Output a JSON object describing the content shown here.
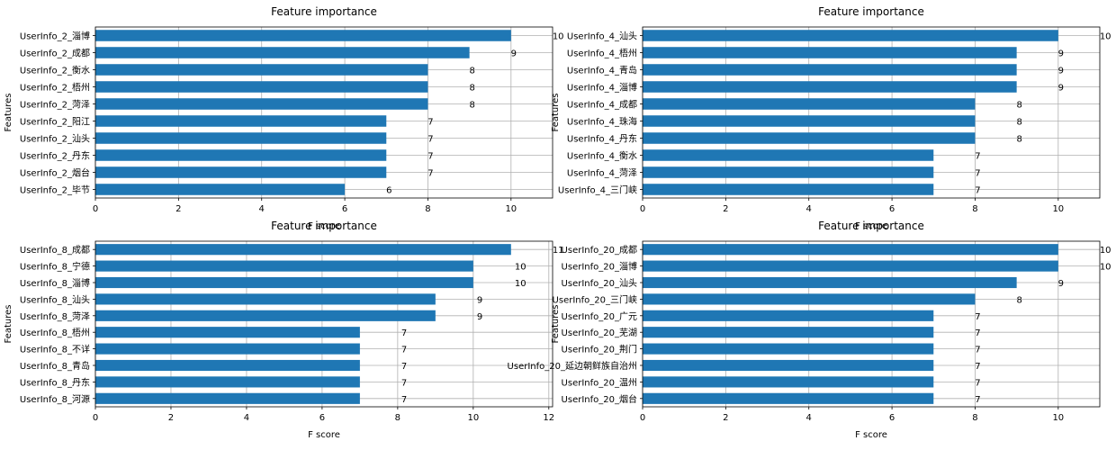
{
  "chart_data": [
    {
      "type": "bar",
      "orientation": "horizontal",
      "title": "Feature importance",
      "xlabel": "F score",
      "ylabel": "Features",
      "xlim": [
        0,
        11
      ],
      "xticks": [
        0,
        2,
        4,
        6,
        8,
        10
      ],
      "grid": true,
      "categories": [
        "UserInfo_2_淄博",
        "UserInfo_2_成都",
        "UserInfo_2_衡水",
        "UserInfo_2_梧州",
        "UserInfo_2_菏泽",
        "UserInfo_2_阳江",
        "UserInfo_2_汕头",
        "UserInfo_2_丹东",
        "UserInfo_2_烟台",
        "UserInfo_2_毕节"
      ],
      "values": [
        10,
        9,
        8,
        8,
        8,
        7,
        7,
        7,
        7,
        6
      ]
    },
    {
      "type": "bar",
      "orientation": "horizontal",
      "title": "Feature importance",
      "xlabel": "F score",
      "ylabel": "Features",
      "xlim": [
        0,
        11
      ],
      "xticks": [
        0,
        2,
        4,
        6,
        8,
        10
      ],
      "grid": true,
      "categories": [
        "UserInfo_4_汕头",
        "UserInfo_4_梧州",
        "UserInfo_4_青岛",
        "UserInfo_4_淄博",
        "UserInfo_4_成都",
        "UserInfo_4_珠海",
        "UserInfo_4_丹东",
        "UserInfo_4_衡水",
        "UserInfo_4_菏泽",
        "UserInfo_4_三门峡"
      ],
      "values": [
        10,
        9,
        9,
        9,
        8,
        8,
        8,
        7,
        7,
        7
      ]
    },
    {
      "type": "bar",
      "orientation": "horizontal",
      "title": "Feature importance",
      "xlabel": "F score",
      "ylabel": "Features",
      "xlim": [
        0,
        12.1
      ],
      "xticks": [
        0,
        2,
        4,
        6,
        8,
        10,
        12
      ],
      "grid": true,
      "categories": [
        "UserInfo_8_成都",
        "UserInfo_8_宁德",
        "UserInfo_8_淄博",
        "UserInfo_8_汕头",
        "UserInfo_8_菏泽",
        "UserInfo_8_梧州",
        "UserInfo_8_不详",
        "UserInfo_8_青岛",
        "UserInfo_8_丹东",
        "UserInfo_8_河源"
      ],
      "values": [
        11,
        10,
        10,
        9,
        9,
        7,
        7,
        7,
        7,
        7
      ]
    },
    {
      "type": "bar",
      "orientation": "horizontal",
      "title": "Feature importance",
      "xlabel": "F score",
      "ylabel": "Features",
      "xlim": [
        0,
        11
      ],
      "xticks": [
        0,
        2,
        4,
        6,
        8,
        10
      ],
      "grid": true,
      "categories": [
        "UserInfo_20_成都",
        "UserInfo_20_淄博",
        "UserInfo_20_汕头",
        "UserInfo_20_三门峡",
        "UserInfo_20_广元",
        "UserInfo_20_芜湖",
        "UserInfo_20_荆门",
        "UserInfo_20_延边朝鲜族自治州",
        "UserInfo_20_温州",
        "UserInfo_20_烟台"
      ],
      "values": [
        10,
        10,
        9,
        8,
        7,
        7,
        7,
        7,
        7,
        7
      ]
    }
  ]
}
